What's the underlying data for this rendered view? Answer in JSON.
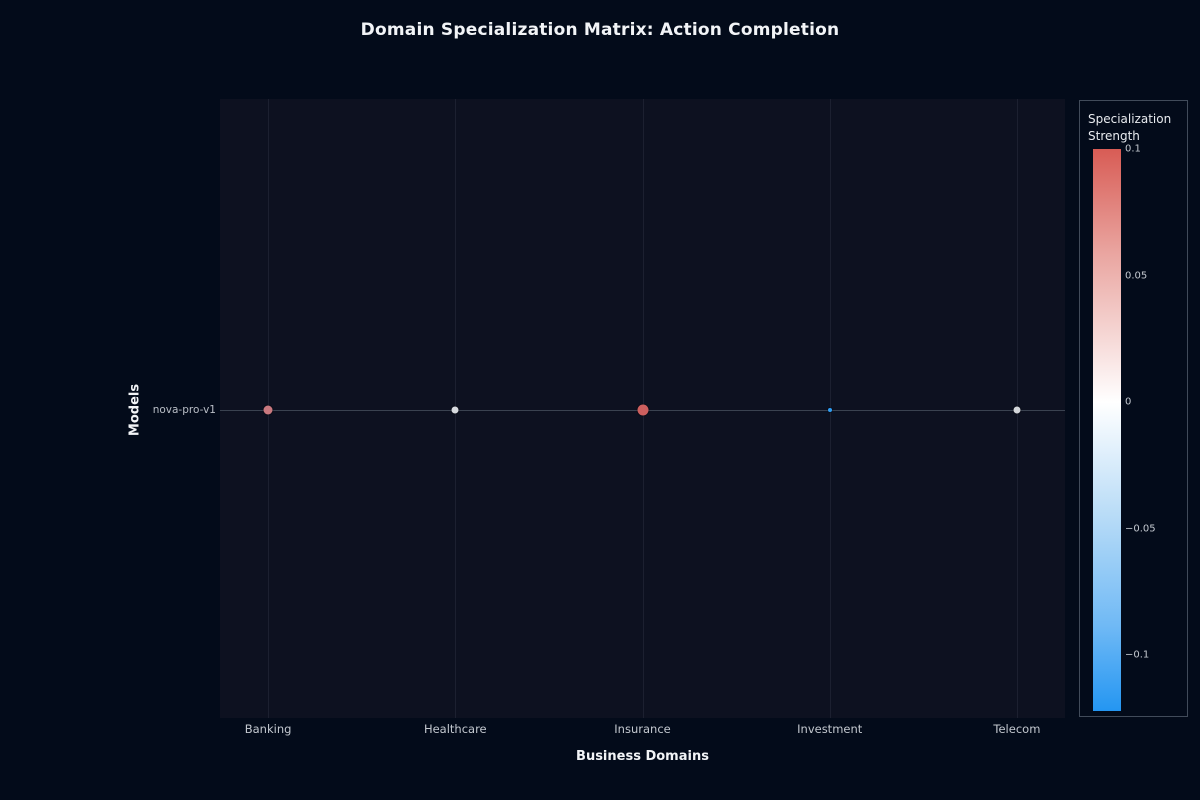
{
  "chart_data": {
    "type": "scatter",
    "title": "Domain Specialization Matrix: Action Completion",
    "xlabel": "Business Domains",
    "ylabel": "Models",
    "categories": [
      "Banking",
      "Healthcare",
      "Insurance",
      "Investment",
      "Telecom"
    ],
    "rows": [
      "nova-pro-v1"
    ],
    "row_label": "nova-pro-v1",
    "series": [
      {
        "name": "nova-pro-v1",
        "values": [
          0.04,
          0.01,
          0.06,
          -0.01,
          0.01
        ]
      }
    ],
    "points": [
      {
        "category": "Banking",
        "row": "nova-pro-v1",
        "specialization_strength": 0.04,
        "color": "#c9797f",
        "size": 9
      },
      {
        "category": "Healthcare",
        "row": "nova-pro-v1",
        "specialization_strength": 0.01,
        "color": "#d7dade",
        "size": 7
      },
      {
        "category": "Insurance",
        "row": "nova-pro-v1",
        "specialization_strength": 0.06,
        "color": "#cd5f5e",
        "size": 11
      },
      {
        "category": "Investment",
        "row": "nova-pro-v1",
        "specialization_strength": -0.01,
        "color": "#2e9df3",
        "size": 4
      },
      {
        "category": "Telecom",
        "row": "nova-pro-v1",
        "specialization_strength": 0.01,
        "color": "#d3d6da",
        "size": 7
      }
    ],
    "colorbar": {
      "title_line1": "Specialization",
      "title_line2": "Strength",
      "max": 0.1,
      "min": -0.122,
      "ticks": [
        {
          "value": 0.1,
          "label": "0.1"
        },
        {
          "value": 0.05,
          "label": "0.05"
        },
        {
          "value": 0,
          "label": "0"
        },
        {
          "value": -0.05,
          "label": "−0.05"
        },
        {
          "value": -0.1,
          "label": "−0.1"
        }
      ],
      "gradient": [
        {
          "pos": 0.0,
          "color": "#d85c55"
        },
        {
          "pos": 0.18,
          "color": "#e9a39e"
        },
        {
          "pos": 0.4505,
          "color": "#ffffff"
        },
        {
          "pos": 0.65,
          "color": "#b9dcf7"
        },
        {
          "pos": 0.85,
          "color": "#6fb9f5"
        },
        {
          "pos": 1.0,
          "color": "#2496f2"
        }
      ]
    },
    "layout_hints": {
      "grid": "vertical lines per category, single horizontal row line",
      "legend_position": "right",
      "background": "dark navy"
    }
  },
  "colors": {
    "paper_bg": "#030b1a",
    "plot_bg": "#0d1120",
    "grid": "rgba(120,130,150,0.14)",
    "row_line": "#3a4250",
    "tick_label": "#c3c8cf",
    "axis_title": "#f2f4f7",
    "legend_border": "#414b5a"
  }
}
